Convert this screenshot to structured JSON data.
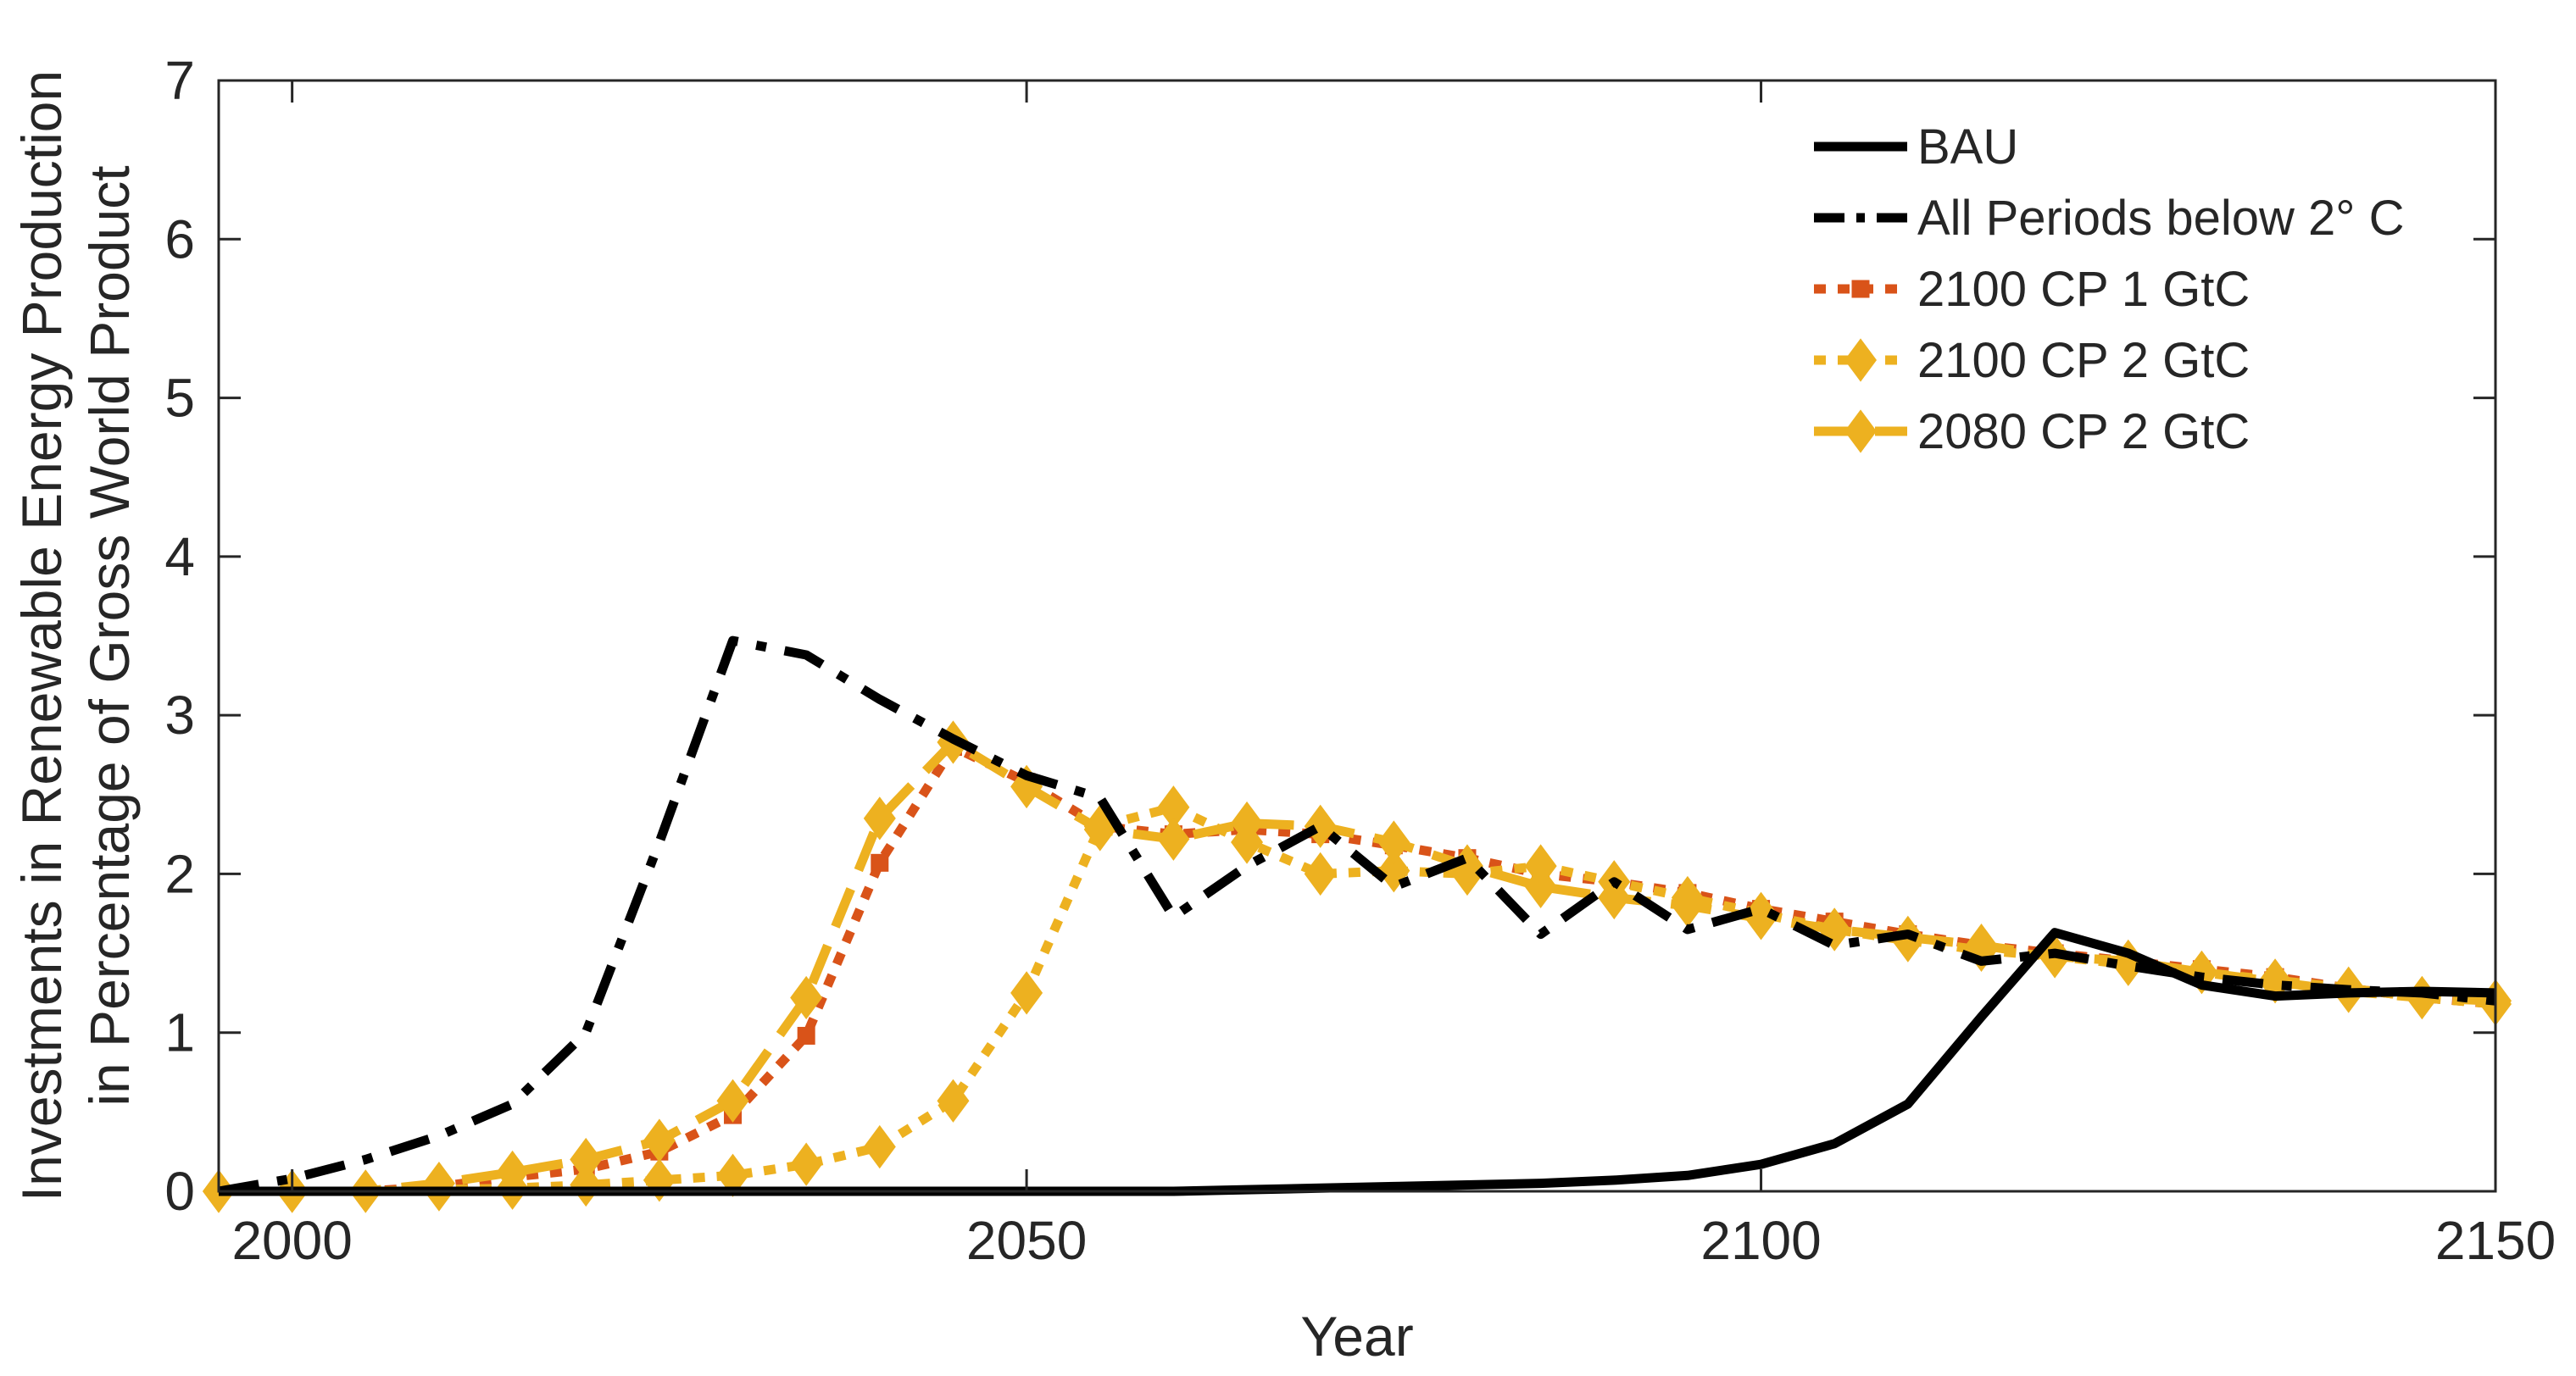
{
  "chart_data": {
    "type": "line",
    "title": "",
    "xlabel": "Year",
    "ylabel_lines": [
      "Investments in Renewable Energy Production",
      "in Percentage of Gross World Product"
    ],
    "xlim": [
      1995,
      2150
    ],
    "ylim": [
      0,
      7
    ],
    "xticks": [
      2000,
      2050,
      2100,
      2150
    ],
    "yticks": [
      0,
      1,
      2,
      3,
      4,
      5,
      6,
      7
    ],
    "grid": false,
    "legend_position": "top-right",
    "series": [
      {
        "name": "BAU",
        "color": "#000000",
        "dash": "solid",
        "marker": "none",
        "x": [
          1995,
          2000,
          2005,
          2010,
          2015,
          2020,
          2025,
          2030,
          2035,
          2040,
          2045,
          2050,
          2055,
          2060,
          2065,
          2070,
          2075,
          2080,
          2085,
          2090,
          2095,
          2100,
          2105,
          2110,
          2115,
          2120,
          2125,
          2130,
          2135,
          2140,
          2145,
          2150
        ],
        "y": [
          0,
          0,
          0,
          0,
          0,
          0,
          0,
          0,
          0,
          0,
          0,
          0,
          0,
          0,
          0.01,
          0.02,
          0.03,
          0.04,
          0.05,
          0.07,
          0.1,
          0.17,
          0.3,
          0.55,
          1.1,
          1.63,
          1.5,
          1.3,
          1.23,
          1.25,
          1.26,
          1.25
        ]
      },
      {
        "name": "All Periods below 2° C",
        "color": "#000000",
        "dash": "dashdot",
        "marker": "none",
        "x": [
          1995,
          2000,
          2005,
          2010,
          2015,
          2020,
          2025,
          2030,
          2035,
          2040,
          2045,
          2050,
          2055,
          2060,
          2065,
          2070,
          2075,
          2080,
          2085,
          2090,
          2095,
          2100,
          2105,
          2110,
          2115,
          2120,
          2125,
          2130,
          2135,
          2140,
          2145,
          2150
        ],
        "y": [
          0,
          0.08,
          0.2,
          0.35,
          0.55,
          1.0,
          2.2,
          3.47,
          3.38,
          3.1,
          2.85,
          2.62,
          2.48,
          1.73,
          2.05,
          2.3,
          1.92,
          2.1,
          1.62,
          1.95,
          1.65,
          1.78,
          1.55,
          1.62,
          1.45,
          1.5,
          1.42,
          1.35,
          1.3,
          1.27,
          1.25,
          1.2
        ]
      },
      {
        "name": "2100 CP 1 GtC",
        "color": "#D95319",
        "dash": "dotted",
        "marker": "square",
        "x": [
          1995,
          2000,
          2005,
          2010,
          2015,
          2020,
          2025,
          2030,
          2035,
          2040,
          2045,
          2050,
          2055,
          2060,
          2065,
          2070,
          2075,
          2080,
          2085,
          2090,
          2095,
          2100,
          2105,
          2110,
          2115,
          2120,
          2125,
          2130,
          2135,
          2140,
          2145,
          2150
        ],
        "y": [
          0,
          0,
          0,
          0.03,
          0.09,
          0.14,
          0.25,
          0.48,
          0.98,
          2.07,
          2.8,
          2.58,
          2.3,
          2.25,
          2.28,
          2.25,
          2.18,
          2.1,
          2.0,
          1.95,
          1.88,
          1.78,
          1.7,
          1.62,
          1.55,
          1.5,
          1.45,
          1.4,
          1.35,
          1.28,
          1.22,
          1.18
        ]
      },
      {
        "name": "2100 CP 2 GtC",
        "color": "#EDB120",
        "dash": "dotted",
        "marker": "diamond",
        "x": [
          1995,
          2000,
          2005,
          2010,
          2015,
          2020,
          2025,
          2030,
          2035,
          2040,
          2045,
          2050,
          2055,
          2060,
          2065,
          2070,
          2075,
          2080,
          2085,
          2090,
          2095,
          2100,
          2105,
          2110,
          2115,
          2120,
          2125,
          2130,
          2135,
          2140,
          2145,
          2150
        ],
        "y": [
          0,
          0,
          0,
          0.01,
          0.02,
          0.04,
          0.07,
          0.1,
          0.17,
          0.28,
          0.57,
          1.25,
          2.3,
          2.42,
          2.2,
          2.0,
          2.02,
          2.0,
          2.05,
          1.95,
          1.85,
          1.75,
          1.65,
          1.58,
          1.52,
          1.48,
          1.43,
          1.38,
          1.33,
          1.28,
          1.22,
          1.18
        ]
      },
      {
        "name": "2080 CP 2 GtC",
        "color": "#EDB120",
        "dash": "dashed",
        "marker": "diamond",
        "x": [
          1995,
          2000,
          2005,
          2010,
          2015,
          2020,
          2025,
          2030,
          2035,
          2040,
          2045,
          2050,
          2055,
          2060,
          2065,
          2070,
          2075,
          2080,
          2085,
          2090,
          2095,
          2100,
          2105,
          2110,
          2115,
          2120,
          2125,
          2130,
          2135,
          2140,
          2145,
          2150
        ],
        "y": [
          0,
          0,
          0,
          0.05,
          0.12,
          0.2,
          0.32,
          0.57,
          1.22,
          2.35,
          2.83,
          2.55,
          2.28,
          2.22,
          2.32,
          2.3,
          2.2,
          2.05,
          1.92,
          1.85,
          1.8,
          1.72,
          1.65,
          1.6,
          1.55,
          1.48,
          1.45,
          1.38,
          1.32,
          1.26,
          1.22,
          1.2
        ]
      }
    ]
  }
}
